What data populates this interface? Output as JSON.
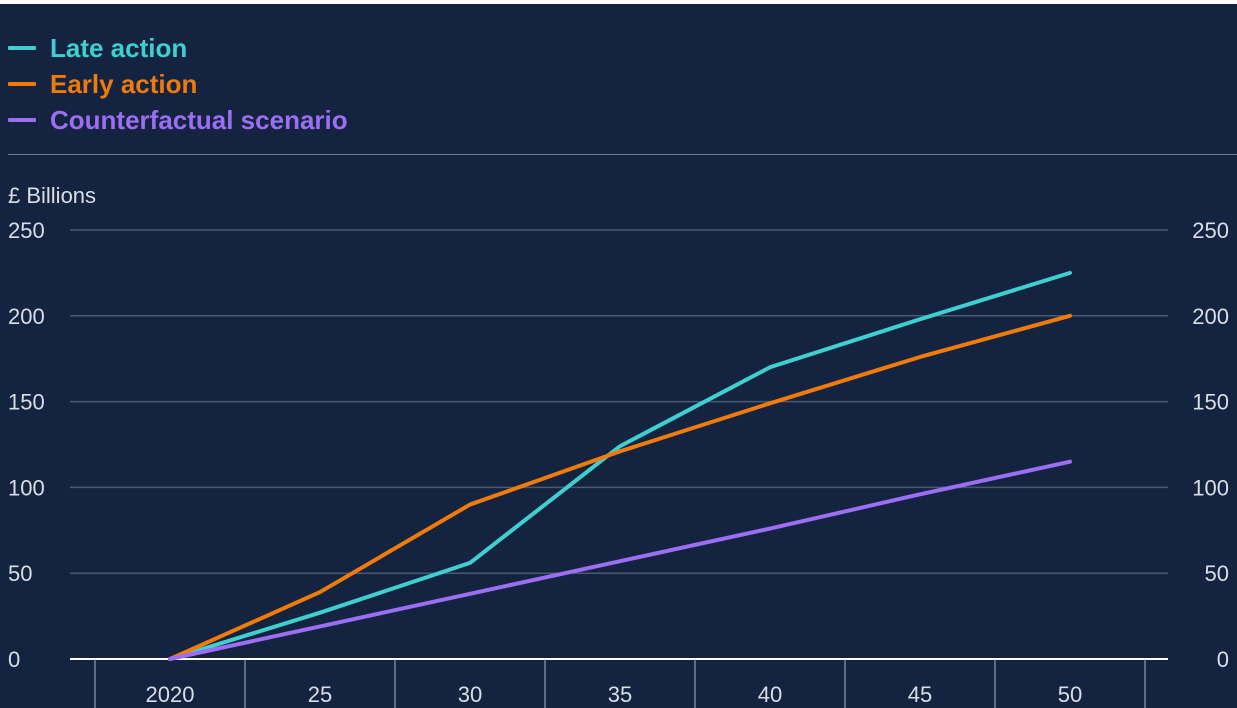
{
  "legend": [
    {
      "label": "Late action",
      "color": "#3fcfcf"
    },
    {
      "label": "Early action",
      "color": "#f07a0a"
    },
    {
      "label": "Counterfactual scenario",
      "color": "#9b6ef3"
    }
  ],
  "chart_data": {
    "type": "line",
    "ylabel": "£ Billions",
    "x": [
      2020,
      2025,
      2030,
      2035,
      2040,
      2045,
      2050
    ],
    "xtick_labels": [
      "2020",
      "25",
      "30",
      "35",
      "40",
      "45",
      "50"
    ],
    "ylim": [
      0,
      250
    ],
    "yticks": [
      0,
      50,
      100,
      150,
      200,
      250
    ],
    "grid": true,
    "legend_position": "top-left",
    "series": [
      {
        "name": "Late action",
        "color": "#3fcfcf",
        "values": [
          0,
          27,
          56,
          124,
          170,
          198,
          225
        ]
      },
      {
        "name": "Early action",
        "color": "#f07a0a",
        "values": [
          0,
          39,
          90,
          121,
          149,
          176,
          200
        ]
      },
      {
        "name": "Counterfactual scenario",
        "color": "#9b6ef3",
        "values": [
          0,
          19,
          38,
          57,
          76,
          96,
          115
        ]
      }
    ]
  }
}
